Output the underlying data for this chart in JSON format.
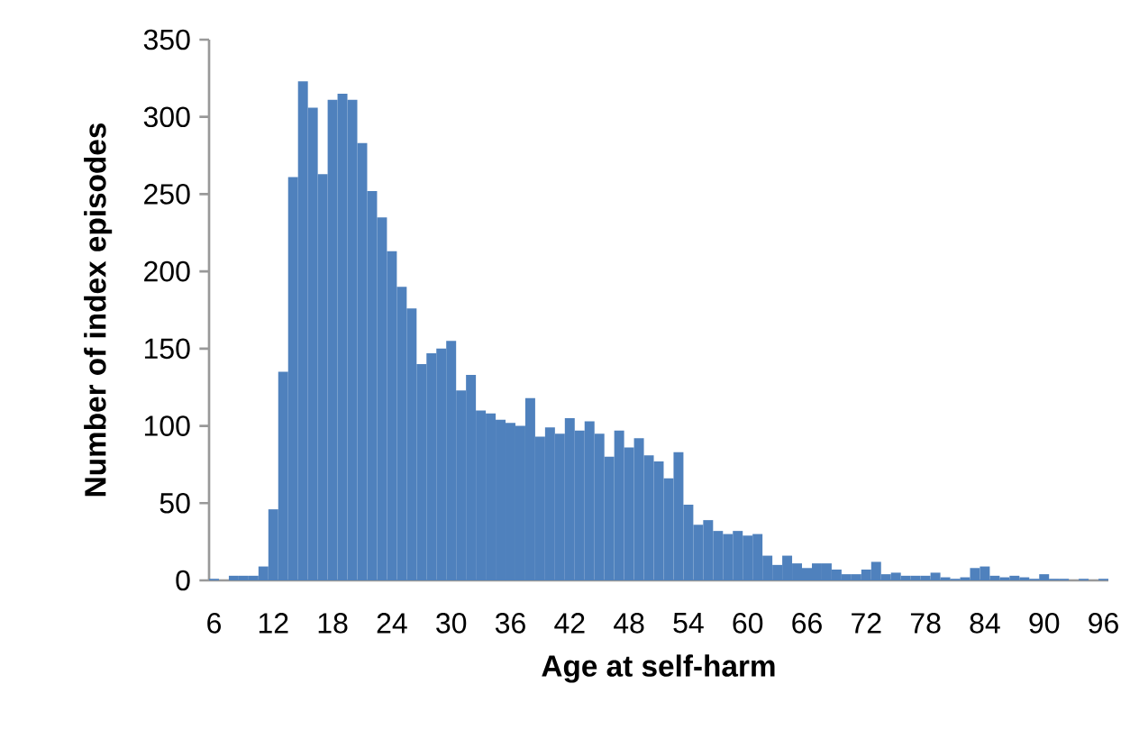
{
  "chart_data": {
    "type": "bar",
    "xlabel": "Age at self-harm",
    "ylabel": "Number of index episodes",
    "categories": [
      "6",
      null,
      null,
      null,
      null,
      null,
      "12",
      null,
      null,
      null,
      null,
      null,
      "18",
      null,
      null,
      null,
      null,
      null,
      "24",
      null,
      null,
      null,
      null,
      null,
      "30",
      null,
      null,
      null,
      null,
      null,
      "36",
      null,
      null,
      null,
      null,
      null,
      "42",
      null,
      null,
      null,
      null,
      null,
      "48",
      null,
      null,
      null,
      null,
      null,
      "54",
      null,
      null,
      null,
      null,
      null,
      "60",
      null,
      null,
      null,
      null,
      null,
      "66",
      null,
      null,
      null,
      null,
      null,
      "72",
      null,
      null,
      null,
      null,
      null,
      "78",
      null,
      null,
      null,
      null,
      null,
      "84",
      null,
      null,
      null,
      null,
      null,
      "90",
      null,
      null,
      null,
      null,
      null,
      "96"
    ],
    "values": [
      1,
      0,
      3,
      3,
      3,
      9,
      46,
      135,
      261,
      323,
      306,
      263,
      311,
      315,
      311,
      283,
      252,
      235,
      213,
      190,
      176,
      140,
      147,
      150,
      155,
      123,
      133,
      110,
      108,
      104,
      102,
      100,
      118,
      93,
      99,
      95,
      105,
      97,
      103,
      95,
      80,
      97,
      86,
      92,
      81,
      77,
      66,
      83,
      49,
      36,
      39,
      32,
      30,
      32,
      29,
      30,
      16,
      10,
      16,
      11,
      8,
      11,
      11,
      7,
      4,
      4,
      7,
      12,
      4,
      5,
      3,
      3,
      3,
      5,
      2,
      1,
      2,
      8,
      9,
      3,
      2,
      3,
      2,
      1,
      4,
      1,
      1,
      0,
      1,
      0,
      1
    ],
    "color": "#4f81bd",
    "ylim": [
      0,
      350
    ],
    "yticks": [
      0,
      50,
      100,
      150,
      200,
      250,
      300,
      350
    ]
  }
}
